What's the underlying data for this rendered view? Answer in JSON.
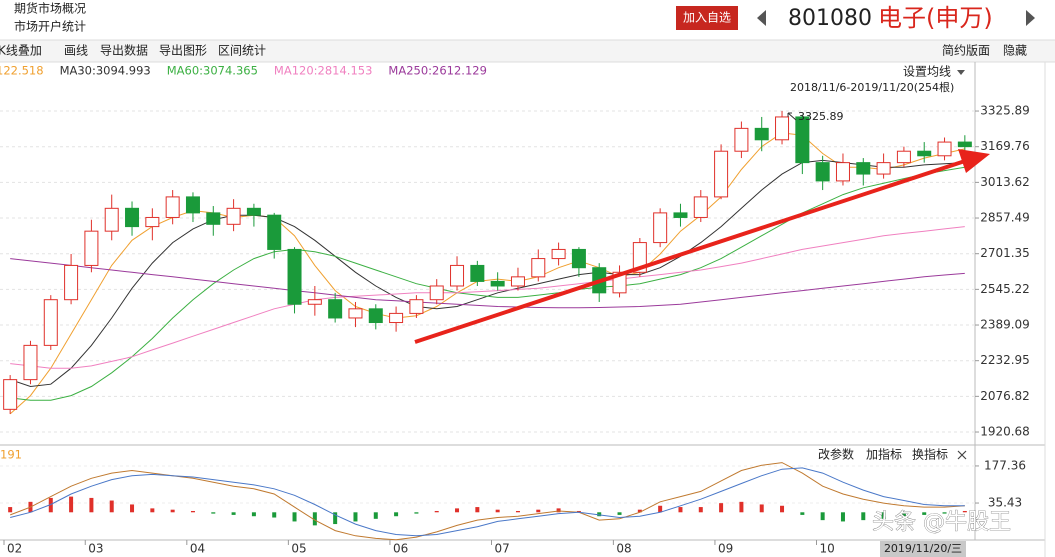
{
  "header": {
    "links": [
      "期货市场概况",
      "市场开户统计"
    ],
    "button": "加入自选",
    "code": "801080",
    "name": "电子(申万)"
  },
  "toolbar": {
    "left": [
      "K线叠加",
      "画线",
      "导出数据",
      "导出图形",
      "区间统计"
    ],
    "right": [
      "简约版面",
      "隐藏"
    ]
  },
  "settings": "设置均线",
  "range": "2018/11/6-2019/11/20(254根)",
  "panel_buttons": [
    "改参数",
    "加指标",
    "换指标"
  ],
  "cursor_date": "2019/11/20/三",
  "watermark": "头条 @牛股王",
  "chart_data": [
    {
      "type": "candlestick",
      "annotation": "3325.89",
      "categories": [
        "02",
        null,
        null,
        null,
        "03",
        null,
        null,
        null,
        null,
        "04",
        null,
        null,
        null,
        null,
        "05",
        null,
        null,
        null,
        null,
        "06",
        null,
        null,
        null,
        null,
        "07",
        null,
        null,
        null,
        null,
        null,
        "08",
        null,
        null,
        null,
        null,
        "09",
        null,
        null,
        null,
        null,
        "10",
        null,
        null,
        null,
        null,
        null,
        null,
        null
      ],
      "open": [
        2020,
        2150,
        2300,
        2500,
        2650,
        2800,
        2900,
        2820,
        2860,
        2950,
        2880,
        2830,
        2900,
        2870,
        2720,
        2480,
        2500,
        2420,
        2460,
        2400,
        2440,
        2500,
        2560,
        2650,
        2580,
        2560,
        2600,
        2680,
        2720,
        2640,
        2530,
        2620,
        2750,
        2880,
        2860,
        2950,
        3150,
        3250,
        3200,
        3300,
        3100,
        3020,
        3100,
        3050,
        3100,
        3150,
        3130,
        3190
      ],
      "close": [
        2150,
        2300,
        2500,
        2650,
        2800,
        2900,
        2820,
        2860,
        2950,
        2880,
        2830,
        2900,
        2870,
        2720,
        2480,
        2500,
        2420,
        2460,
        2400,
        2440,
        2500,
        2560,
        2650,
        2580,
        2560,
        2600,
        2680,
        2720,
        2640,
        2530,
        2620,
        2750,
        2880,
        2860,
        2950,
        3150,
        3250,
        3200,
        3300,
        3100,
        3020,
        3100,
        3050,
        3100,
        3150,
        3130,
        3190,
        3170
      ],
      "high": [
        2170,
        2320,
        2520,
        2700,
        2850,
        2960,
        2930,
        2900,
        2980,
        2970,
        2910,
        2940,
        2920,
        2880,
        2730,
        2560,
        2530,
        2490,
        2480,
        2470,
        2520,
        2590,
        2690,
        2670,
        2620,
        2640,
        2720,
        2750,
        2730,
        2660,
        2650,
        2770,
        2900,
        2920,
        2980,
        3180,
        3280,
        3300,
        3325.89,
        3310,
        3130,
        3140,
        3120,
        3140,
        3170,
        3190,
        3210,
        3220
      ],
      "low": [
        2000,
        2130,
        2280,
        2480,
        2620,
        2760,
        2780,
        2760,
        2830,
        2840,
        2780,
        2800,
        2820,
        2680,
        2440,
        2430,
        2400,
        2380,
        2370,
        2360,
        2420,
        2480,
        2540,
        2560,
        2540,
        2540,
        2580,
        2650,
        2600,
        2490,
        2510,
        2600,
        2730,
        2820,
        2840,
        2940,
        3120,
        3150,
        3180,
        3050,
        2980,
        3000,
        3000,
        3030,
        3080,
        3100,
        3110,
        3150
      ],
      "up_color": "#e0302a",
      "down_color": "#1a9a3a",
      "series": [
        {
          "name": "122.518",
          "color": "#f0a030",
          "values": [
            2000,
            2080,
            2200,
            2350,
            2500,
            2650,
            2760,
            2820,
            2860,
            2890,
            2880,
            2860,
            2870,
            2860,
            2780,
            2650,
            2540,
            2470,
            2440,
            2420,
            2430,
            2470,
            2530,
            2580,
            2590,
            2580,
            2600,
            2640,
            2670,
            2640,
            2600,
            2620,
            2700,
            2800,
            2870,
            2950,
            3070,
            3170,
            3230,
            3220,
            3140,
            3080,
            3080,
            3070,
            3090,
            3120,
            3140,
            3160
          ]
        },
        {
          "name": "MA30:3094.993",
          "color": "#333333",
          "values": [
            2150,
            2120,
            2130,
            2200,
            2300,
            2420,
            2550,
            2660,
            2750,
            2810,
            2850,
            2870,
            2870,
            2860,
            2820,
            2760,
            2690,
            2620,
            2560,
            2510,
            2470,
            2460,
            2470,
            2500,
            2530,
            2550,
            2570,
            2590,
            2610,
            2620,
            2610,
            2610,
            2640,
            2690,
            2750,
            2820,
            2900,
            2980,
            3050,
            3100,
            3110,
            3100,
            3090,
            3080,
            3080,
            3090,
            3095,
            3100
          ]
        },
        {
          "name": "MA60:3074.365",
          "color": "#3cb043",
          "values": [
            2070,
            2060,
            2060,
            2080,
            2120,
            2180,
            2250,
            2330,
            2420,
            2500,
            2570,
            2630,
            2680,
            2710,
            2720,
            2710,
            2690,
            2660,
            2630,
            2600,
            2570,
            2550,
            2530,
            2520,
            2510,
            2510,
            2520,
            2530,
            2545,
            2555,
            2560,
            2570,
            2590,
            2610,
            2640,
            2680,
            2730,
            2780,
            2830,
            2880,
            2920,
            2960,
            2990,
            3010,
            3030,
            3050,
            3065,
            3080
          ]
        },
        {
          "name": "MA120:2814.153",
          "color": "#f080c0",
          "values": [
            2220,
            2210,
            2200,
            2200,
            2210,
            2230,
            2250,
            2280,
            2310,
            2340,
            2370,
            2400,
            2430,
            2460,
            2480,
            2500,
            2510,
            2515,
            2520,
            2525,
            2530,
            2530,
            2530,
            2535,
            2540,
            2545,
            2550,
            2560,
            2570,
            2580,
            2590,
            2600,
            2610,
            2620,
            2630,
            2645,
            2660,
            2680,
            2700,
            2720,
            2735,
            2750,
            2765,
            2780,
            2790,
            2800,
            2810,
            2820
          ]
        },
        {
          "name": "MA250:2612.129",
          "color": "#9b3a9b",
          "values": [
            2680,
            2670,
            2660,
            2650,
            2640,
            2630,
            2620,
            2610,
            2600,
            2590,
            2580,
            2570,
            2560,
            2550,
            2540,
            2530,
            2520,
            2510,
            2500,
            2495,
            2490,
            2485,
            2480,
            2475,
            2470,
            2468,
            2466,
            2465,
            2465,
            2466,
            2468,
            2470,
            2475,
            2480,
            2490,
            2500,
            2510,
            2520,
            2530,
            2540,
            2550,
            2560,
            2570,
            2580,
            2590,
            2600,
            2608,
            2615
          ]
        }
      ],
      "ylim": [
        1877,
        3453
      ],
      "yticks": [
        1920.68,
        2076.82,
        2232.95,
        2389.09,
        2545.22,
        2701.35,
        2857.49,
        3013.62,
        3169.76,
        3325.89
      ],
      "grid": true
    },
    {
      "type": "macd",
      "legend": "191",
      "legend_color": "#f0a030",
      "values": [
        20,
        40,
        55,
        60,
        55,
        45,
        30,
        15,
        10,
        5,
        -5,
        -10,
        -15,
        -20,
        -35,
        -50,
        -45,
        -35,
        -25,
        -15,
        -5,
        5,
        15,
        20,
        10,
        5,
        10,
        15,
        5,
        -15,
        -10,
        10,
        25,
        20,
        20,
        35,
        40,
        30,
        25,
        -10,
        -30,
        -35,
        -30,
        -25,
        -15,
        -10,
        -5,
        5
      ],
      "up_color": "#e0302a",
      "down_color": "#1a9a3a",
      "series": [
        {
          "color": "#c07a30",
          "values": [
            -10,
            20,
            60,
            100,
            130,
            150,
            160,
            150,
            140,
            130,
            115,
            100,
            90,
            70,
            20,
            -30,
            -70,
            -90,
            -100,
            -105,
            -95,
            -75,
            -50,
            -30,
            -20,
            -15,
            -5,
            5,
            0,
            -30,
            -25,
            0,
            40,
            60,
            80,
            120,
            160,
            180,
            190,
            150,
            100,
            70,
            50,
            35,
            25,
            20,
            20,
            25
          ]
        },
        {
          "color": "#4a78c8",
          "values": [
            -20,
            0,
            30,
            70,
            100,
            125,
            140,
            145,
            140,
            135,
            125,
            115,
            105,
            90,
            65,
            30,
            -10,
            -45,
            -70,
            -85,
            -90,
            -85,
            -70,
            -55,
            -35,
            -25,
            -15,
            -5,
            0,
            -10,
            -20,
            -15,
            0,
            25,
            50,
            80,
            110,
            140,
            165,
            170,
            150,
            115,
            85,
            60,
            45,
            30,
            25,
            25
          ]
        }
      ],
      "ylim": [
        -106,
        246
      ],
      "yticks": [
        35.43,
        177.36
      ]
    }
  ]
}
